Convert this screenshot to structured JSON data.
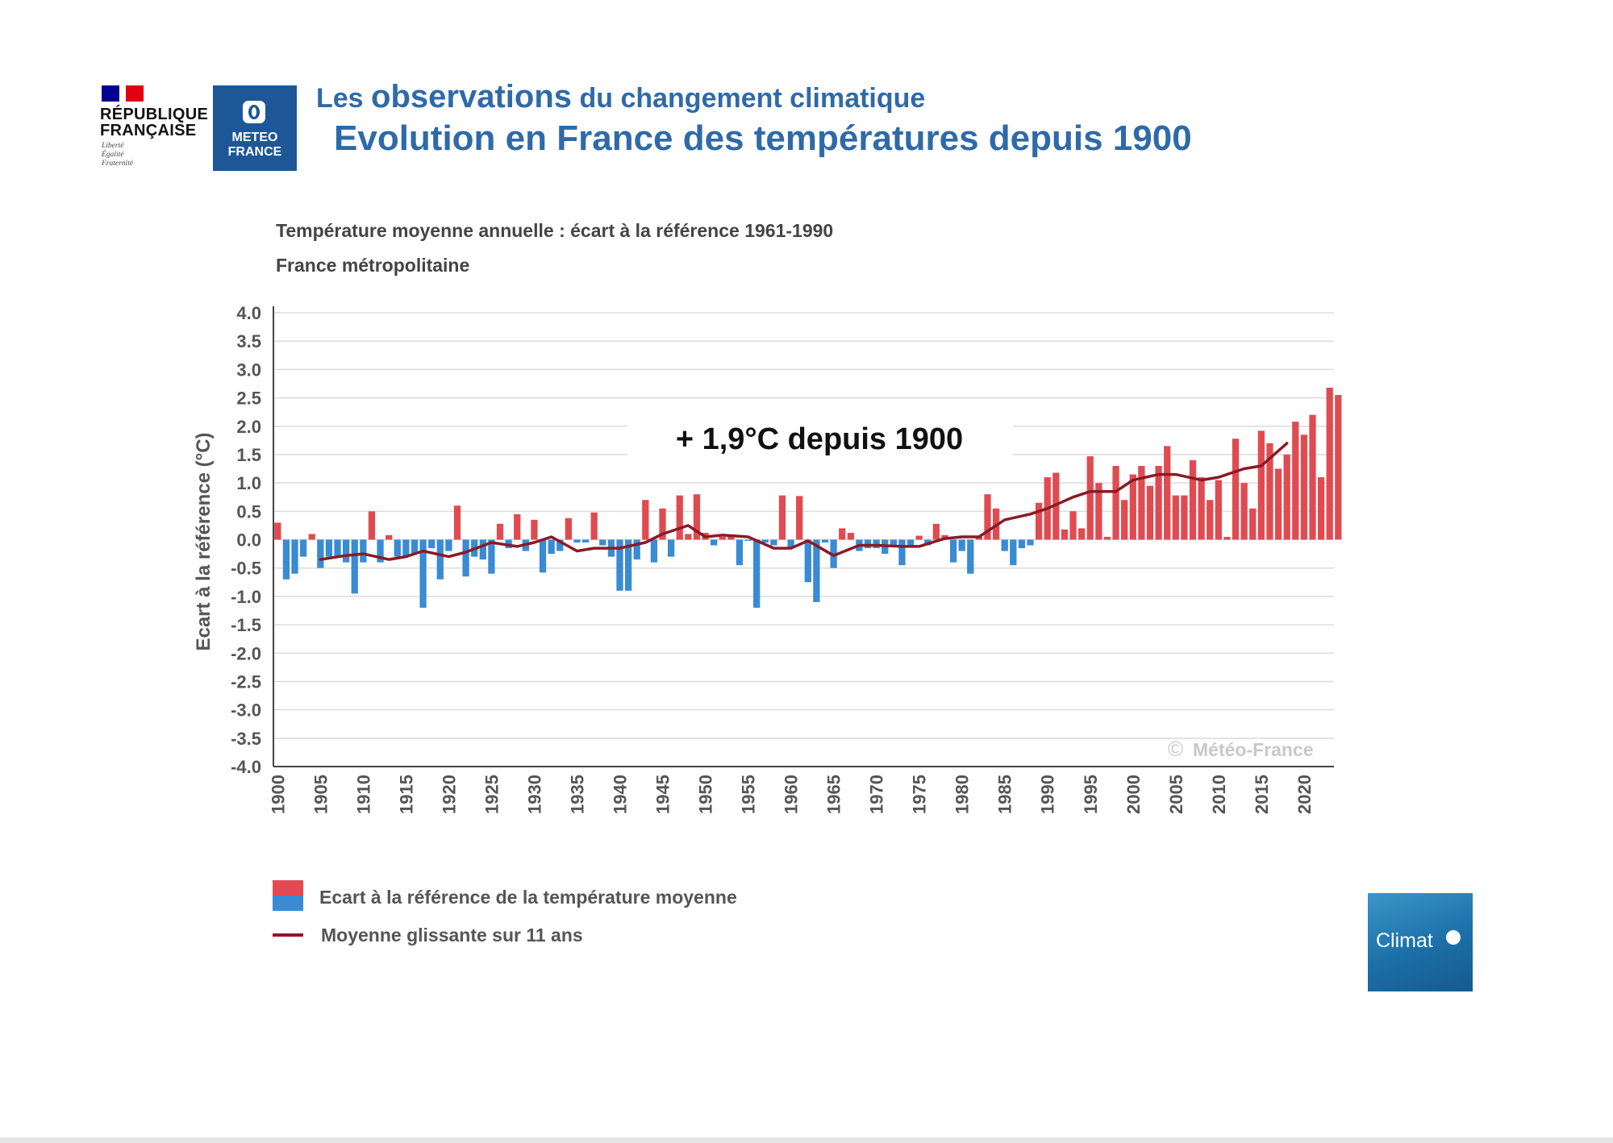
{
  "logos": {
    "rf_name_line1": "RÉPUBLIQUE",
    "rf_name_line2": "FRANÇAISE",
    "rf_motto_1": "Liberté",
    "rf_motto_2": "Égalité",
    "rf_motto_3": "Fraternité",
    "mf_line1": "METEO",
    "mf_line2": "FRANCE"
  },
  "header": {
    "line1_a": "Les ",
    "line1_b": "observations",
    "line1_c": " du changement climatique",
    "line2": "Evolution en France des températures depuis 1900"
  },
  "colors": {
    "title_blue": "#2f6aa8",
    "positive_bar": "#e04b52",
    "negative_bar": "#3a8ad4",
    "moving_average": "#8b1a24"
  },
  "chart_data": {
    "type": "bar",
    "title": "Température moyenne annuelle : écart à la référence 1961-1990",
    "subtitle": "France métropolitaine",
    "ylabel": "Ecart à la référence (°C)",
    "ylim": [
      -4.0,
      4.0
    ],
    "ytick_step": 0.5,
    "yticks": [
      "4.0",
      "3.5",
      "3.0",
      "2.5",
      "2.0",
      "1.5",
      "1.0",
      "0.5",
      "0.0",
      "-0.5",
      "-1.0",
      "-1.5",
      "-2.0",
      "-2.5",
      "-3.0",
      "-3.5",
      "-4.0"
    ],
    "xtick_labels": [
      "1900",
      "1905",
      "1910",
      "1915",
      "1920",
      "1925",
      "1930",
      "1935",
      "1940",
      "1945",
      "1950",
      "1955",
      "1960",
      "1965",
      "1970",
      "1975",
      "1980",
      "1985",
      "1990",
      "1995",
      "2000",
      "2005",
      "2010",
      "2015",
      "2020"
    ],
    "grid": true,
    "annotation": "+ 1,9°C depuis 1900",
    "watermark": "Météo-France",
    "copyright_symbol": "©",
    "x_start": 1900,
    "x_end": 2023,
    "series": [
      {
        "name": "Ecart à la référence de la température moyenne",
        "type": "bar",
        "values": [
          0.3,
          -0.7,
          -0.6,
          -0.3,
          0.1,
          -0.5,
          -0.3,
          -0.3,
          -0.4,
          -0.95,
          -0.4,
          0.5,
          -0.4,
          0.08,
          -0.3,
          -0.3,
          -0.25,
          -1.2,
          -0.15,
          -0.7,
          -0.2,
          0.6,
          -0.65,
          -0.3,
          -0.35,
          -0.6,
          0.28,
          -0.15,
          0.45,
          -0.2,
          0.35,
          -0.58,
          -0.25,
          -0.2,
          0.38,
          -0.05,
          -0.05,
          0.48,
          -0.1,
          -0.3,
          -0.9,
          -0.9,
          -0.35,
          0.7,
          -0.4,
          0.55,
          -0.3,
          0.78,
          0.1,
          0.8,
          0.12,
          -0.1,
          0.05,
          0.05,
          -0.45,
          -0.02,
          -1.2,
          -0.05,
          -0.1,
          0.78,
          -0.15,
          0.77,
          -0.75,
          -1.1,
          -0.05,
          -0.5,
          0.2,
          0.12,
          -0.2,
          -0.15,
          -0.15,
          -0.25,
          -0.1,
          -0.45,
          -0.1,
          0.07,
          -0.1,
          0.28,
          0.08,
          -0.4,
          -0.2,
          -0.6,
          0.05,
          0.8,
          0.55,
          -0.2,
          -0.45,
          -0.15,
          -0.1,
          0.65,
          1.1,
          1.18,
          0.18,
          0.5,
          0.2,
          1.47,
          1.0,
          0.05,
          1.3,
          0.7,
          1.15,
          1.3,
          0.95,
          1.3,
          1.65,
          0.78,
          0.78,
          1.4,
          1.1,
          0.7,
          1.05,
          0.05,
          1.78,
          1.0,
          0.55,
          1.92,
          1.7,
          1.25,
          1.5,
          2.08,
          1.85,
          2.2,
          1.1,
          2.68,
          2.55
        ],
        "positive_color": "#e04b52",
        "negative_color": "#3a8ad4"
      },
      {
        "name": "Moyenne glissante sur 11 ans",
        "type": "line",
        "color": "#8b1a24",
        "x": [
          1905,
          1908,
          1910,
          1913,
          1915,
          1917,
          1920,
          1922,
          1925,
          1928,
          1930,
          1932,
          1935,
          1937,
          1940,
          1943,
          1945,
          1948,
          1950,
          1952,
          1955,
          1958,
          1960,
          1962,
          1965,
          1968,
          1970,
          1973,
          1975,
          1978,
          1980,
          1982,
          1985,
          1988,
          1990,
          1993,
          1995,
          1998,
          2000,
          2003,
          2005,
          2008,
          2010,
          2013,
          2015,
          2018
        ],
        "y": [
          -0.35,
          -0.28,
          -0.25,
          -0.35,
          -0.3,
          -0.2,
          -0.3,
          -0.22,
          -0.05,
          -0.12,
          -0.05,
          0.05,
          -0.2,
          -0.15,
          -0.15,
          -0.05,
          0.1,
          0.25,
          0.05,
          0.08,
          0.05,
          -0.15,
          -0.15,
          -0.02,
          -0.28,
          -0.1,
          -0.1,
          -0.12,
          -0.12,
          0.02,
          0.05,
          0.05,
          0.35,
          0.45,
          0.55,
          0.75,
          0.85,
          0.85,
          1.05,
          1.15,
          1.15,
          1.05,
          1.1,
          1.25,
          1.3,
          1.7
        ]
      }
    ]
  },
  "legend": {
    "item1": "Ecart à la référence de la température moyenne",
    "item2": "Moyenne glissante sur 11 ans"
  },
  "badge": {
    "label": "Climat"
  }
}
